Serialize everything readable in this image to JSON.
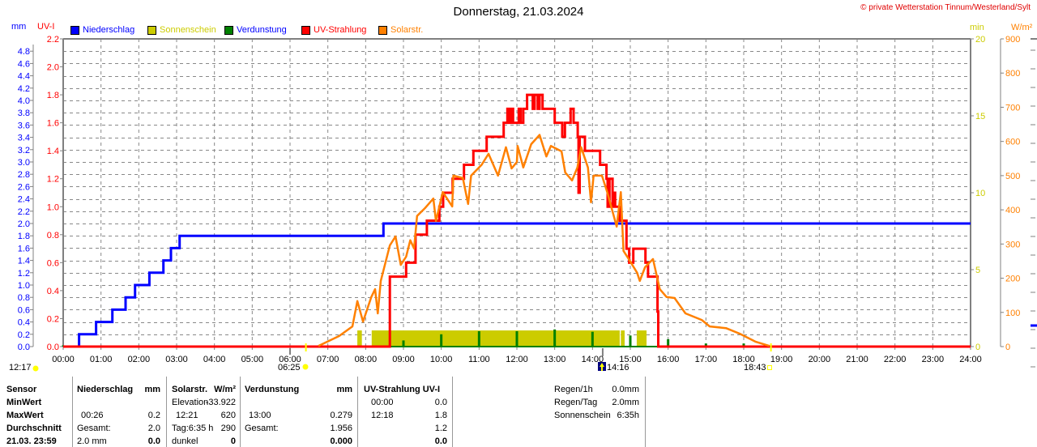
{
  "header": {
    "title": "Donnerstag, 21.03.2024",
    "copyright": "© private Wetterstation Tinnum/Westerland/Sylt"
  },
  "legend": [
    {
      "label": "Niederschlag",
      "color": "#0000ff",
      "text_color": "#0000ff"
    },
    {
      "label": "Sonnenschein",
      "color": "#cccc00",
      "text_color": "#cccc00"
    },
    {
      "label": "Verdunstung",
      "color": "#008000",
      "text_color": "#0000ff"
    },
    {
      "label": "UV-Strahlung",
      "color": "#ff0000",
      "text_color": "#ff0000"
    },
    {
      "label": "Solarstr.",
      "color": "#ff8000",
      "text_color": "#ff8000"
    }
  ],
  "chart_data": {
    "type": "line",
    "title": "Donnerstag, 21.03.2024",
    "x_range_hours": [
      0,
      24
    ],
    "x_ticks": [
      "00:00",
      "01:00",
      "02:00",
      "03:00",
      "04:00",
      "05:00",
      "06:00",
      "07:00",
      "08:00",
      "09:00",
      "10:00",
      "11:00",
      "12:00",
      "13:00",
      "14:00",
      "15:00",
      "16:00",
      "17:00",
      "18:00",
      "19:00",
      "20:00",
      "21:00",
      "22:00",
      "23:00",
      "24:00"
    ],
    "grid": true,
    "axes": {
      "mm": {
        "label": "mm",
        "color": "#0000ff",
        "range": [
          0,
          5.0
        ],
        "ticks": [
          "0.0",
          "0.2",
          "0.4",
          "0.6",
          "0.8",
          "1.0",
          "1.2",
          "1.4",
          "1.6",
          "1.8",
          "2.0",
          "2.2",
          "2.4",
          "2.6",
          "2.8",
          "3.0",
          "3.2",
          "3.4",
          "3.6",
          "3.8",
          "4.0",
          "4.2",
          "4.4",
          "4.6",
          "4.8"
        ]
      },
      "uv": {
        "label": "UV-I",
        "color": "#ff0000",
        "range": [
          0,
          2.2
        ],
        "ticks": [
          "0.0",
          "0.2",
          "0.4",
          "0.6",
          "0.8",
          "1.0",
          "1.2",
          "1.4",
          "1.6",
          "1.8",
          "2.0",
          "2.2"
        ]
      },
      "min": {
        "label": "min",
        "color": "#cccc00",
        "range": [
          0,
          20
        ],
        "ticks": [
          "0",
          "5",
          "10",
          "15",
          "20"
        ]
      },
      "wm2": {
        "label": "W/m²",
        "color": "#ff8000",
        "range": [
          0,
          900
        ],
        "ticks": [
          "0",
          "100",
          "200",
          "300",
          "400",
          "500",
          "600",
          "700",
          "800",
          "900"
        ]
      }
    },
    "series": [
      {
        "name": "Niederschlag",
        "axis": "mm",
        "color": "#0000ff",
        "kind": "step",
        "points": [
          [
            0,
            0
          ],
          [
            0.42,
            0.2
          ],
          [
            0.87,
            0.4
          ],
          [
            1.3,
            0.6
          ],
          [
            1.65,
            0.8
          ],
          [
            1.9,
            1.0
          ],
          [
            2.28,
            1.2
          ],
          [
            2.65,
            1.4
          ],
          [
            2.85,
            1.6
          ],
          [
            3.08,
            1.8
          ],
          [
            8.47,
            2.0
          ],
          [
            24,
            2.0
          ]
        ]
      },
      {
        "name": "UV-Strahlung",
        "axis": "uv",
        "color": "#ff0000",
        "kind": "step",
        "points": [
          [
            0,
            0
          ],
          [
            8.64,
            0.5
          ],
          [
            9.07,
            0.6
          ],
          [
            9.32,
            0.8
          ],
          [
            9.62,
            0.9
          ],
          [
            9.95,
            1.0
          ],
          [
            10.05,
            1.1
          ],
          [
            10.3,
            1.2
          ],
          [
            10.6,
            1.3
          ],
          [
            10.85,
            1.4
          ],
          [
            11.2,
            1.5
          ],
          [
            11.65,
            1.6
          ],
          [
            11.75,
            1.7
          ],
          [
            11.8,
            1.6
          ],
          [
            11.85,
            1.7
          ],
          [
            11.9,
            1.6
          ],
          [
            12.05,
            1.7
          ],
          [
            12.1,
            1.6
          ],
          [
            12.17,
            1.7
          ],
          [
            12.27,
            1.8
          ],
          [
            12.42,
            1.7
          ],
          [
            12.47,
            1.8
          ],
          [
            12.55,
            1.7
          ],
          [
            12.6,
            1.8
          ],
          [
            12.68,
            1.7
          ],
          [
            13.0,
            1.6
          ],
          [
            13.2,
            1.5
          ],
          [
            13.27,
            1.6
          ],
          [
            13.42,
            1.7
          ],
          [
            13.5,
            1.6
          ],
          [
            13.61,
            1.5
          ],
          [
            13.63,
            1.1
          ],
          [
            13.66,
            1.5
          ],
          [
            13.8,
            1.4
          ],
          [
            14.2,
            1.3
          ],
          [
            14.37,
            1.2
          ],
          [
            14.4,
            1.0
          ],
          [
            14.45,
            1.2
          ],
          [
            14.53,
            1.0
          ],
          [
            14.57,
            1.1
          ],
          [
            14.6,
            1.0
          ],
          [
            14.72,
            0.9
          ],
          [
            14.9,
            0.7
          ],
          [
            14.97,
            0.6
          ],
          [
            15.08,
            0.7
          ],
          [
            15.4,
            0.6
          ],
          [
            15.47,
            0.5
          ],
          [
            15.72,
            0.25
          ],
          [
            15.74,
            0
          ],
          [
            24,
            0
          ]
        ]
      },
      {
        "name": "Solarstr.",
        "axis": "wm2",
        "color": "#ff8000",
        "kind": "line",
        "points": [
          [
            6.75,
            2
          ],
          [
            7.3,
            31
          ],
          [
            7.65,
            59
          ],
          [
            7.78,
            133
          ],
          [
            7.93,
            73
          ],
          [
            8.15,
            145
          ],
          [
            8.25,
            168
          ],
          [
            8.32,
            97
          ],
          [
            8.4,
            192
          ],
          [
            8.64,
            296
          ],
          [
            8.79,
            322
          ],
          [
            8.93,
            239
          ],
          [
            9.07,
            263
          ],
          [
            9.18,
            311
          ],
          [
            9.28,
            287
          ],
          [
            9.36,
            382
          ],
          [
            9.57,
            405
          ],
          [
            9.79,
            433
          ],
          [
            9.86,
            367
          ],
          [
            10.04,
            452
          ],
          [
            10.29,
            410
          ],
          [
            10.32,
            500
          ],
          [
            10.57,
            493
          ],
          [
            10.71,
            417
          ],
          [
            10.79,
            500
          ],
          [
            11.07,
            532
          ],
          [
            11.25,
            564
          ],
          [
            11.5,
            500
          ],
          [
            11.71,
            583
          ],
          [
            11.86,
            521
          ],
          [
            12.0,
            540
          ],
          [
            12.02,
            587
          ],
          [
            12.17,
            524
          ],
          [
            12.38,
            592
          ],
          [
            12.6,
            619
          ],
          [
            12.78,
            556
          ],
          [
            12.9,
            587
          ],
          [
            13.18,
            571
          ],
          [
            13.28,
            509
          ],
          [
            13.46,
            486
          ],
          [
            13.6,
            524
          ],
          [
            13.7,
            583
          ],
          [
            13.88,
            524
          ],
          [
            13.96,
            422
          ],
          [
            14.03,
            500
          ],
          [
            14.25,
            500
          ],
          [
            14.39,
            452
          ],
          [
            14.64,
            351
          ],
          [
            14.75,
            452
          ],
          [
            14.82,
            280
          ],
          [
            14.96,
            256
          ],
          [
            15.18,
            216
          ],
          [
            15.25,
            192
          ],
          [
            15.39,
            232
          ],
          [
            15.6,
            256
          ],
          [
            15.78,
            168
          ],
          [
            15.96,
            145
          ],
          [
            16.17,
            142
          ],
          [
            16.46,
            97
          ],
          [
            16.89,
            78
          ],
          [
            17.1,
            59
          ],
          [
            17.53,
            54
          ],
          [
            17.89,
            38
          ],
          [
            18.32,
            14
          ],
          [
            18.68,
            2
          ]
        ]
      },
      {
        "name": "Sonnenschein",
        "axis": "min",
        "color": "#cccc00",
        "kind": "bars",
        "intervals": [
          [
            7.78,
            7.9,
            1.05
          ],
          [
            8.16,
            14.72,
            1.05
          ],
          [
            14.75,
            14.85,
            1.05
          ],
          [
            15.17,
            15.43,
            1.05
          ]
        ]
      },
      {
        "name": "Verdunstung",
        "axis": "mm",
        "color": "#008000",
        "kind": "spikes",
        "points": [
          [
            0,
            0.02
          ],
          [
            1,
            0.02
          ],
          [
            2,
            0.02
          ],
          [
            3,
            0.02
          ],
          [
            6,
            0.02
          ],
          [
            7,
            0.02
          ],
          [
            8,
            0.02
          ],
          [
            9,
            0.1
          ],
          [
            10,
            0.2
          ],
          [
            11,
            0.25
          ],
          [
            12,
            0.25
          ],
          [
            13,
            0.279
          ],
          [
            14,
            0.24
          ],
          [
            15,
            0.18
          ],
          [
            16,
            0.12
          ],
          [
            17,
            0.05
          ],
          [
            18,
            0.05
          ],
          [
            19,
            0.02
          ],
          [
            20,
            0.02
          ],
          [
            21,
            0.02
          ],
          [
            22,
            0.02
          ],
          [
            23,
            0.02
          ]
        ]
      }
    ],
    "markers": {
      "left_time": "12:17",
      "sunrise": {
        "label": "06:25",
        "hour": 6.42
      },
      "noon": {
        "label": "14:16",
        "hour": 14.27
      },
      "sunset": {
        "label": "18:43",
        "hour": 18.72
      }
    }
  },
  "table": {
    "columns": [
      {
        "label_x": "sensor"
      },
      {
        "head": "Niederschlag",
        "unit": "mm"
      },
      {
        "head": "Solarstr.",
        "unit": "W/m²"
      },
      {
        "head": "Verdunstung",
        "unit": "mm"
      },
      {
        "head": "UV-Strahlung UV-I",
        "unit": ""
      }
    ],
    "rows": [
      {
        "label": "Sensor",
        "cells": [
          [
            "Niederschlag",
            "mm"
          ],
          [
            "Solarstr.",
            "W/m²"
          ],
          [
            "Verdunstung",
            "mm"
          ],
          [
            "UV-Strahlung UV-I",
            ""
          ]
        ],
        "bold_all": true
      },
      {
        "label": "MinWert",
        "cells": [
          [
            "",
            ""
          ],
          [
            "Elevation",
            "-33.922"
          ],
          [
            "",
            ""
          ],
          [
            "00:00",
            "0.0"
          ]
        ]
      },
      {
        "label": "MaxWert",
        "cells": [
          [
            "00:26",
            "0.2"
          ],
          [
            "12:21",
            "620"
          ],
          [
            "13:00",
            "0.279"
          ],
          [
            "12:18",
            "1.8"
          ]
        ]
      },
      {
        "label": "Durchschnitt",
        "cells": [
          [
            "Gesamt:",
            "2.0"
          ],
          [
            "Tag:6:35 h",
            "290"
          ],
          [
            "Gesamt:",
            "1.956"
          ],
          [
            "",
            "1.2"
          ]
        ]
      },
      {
        "label": "21.03. 23:59",
        "cells": [
          [
            "2.0 mm",
            "0.0"
          ],
          [
            "dunkel",
            "0"
          ],
          [
            "",
            "0.000"
          ],
          [
            "",
            "0.0"
          ]
        ],
        "bold_values": true
      }
    ],
    "summary": [
      {
        "label": "Regen/1h",
        "value": "0.0mm"
      },
      {
        "label": "Regen/Tag",
        "value": "2.0mm"
      },
      {
        "label": "Sonnenschein",
        "value": "6:35h"
      }
    ]
  }
}
